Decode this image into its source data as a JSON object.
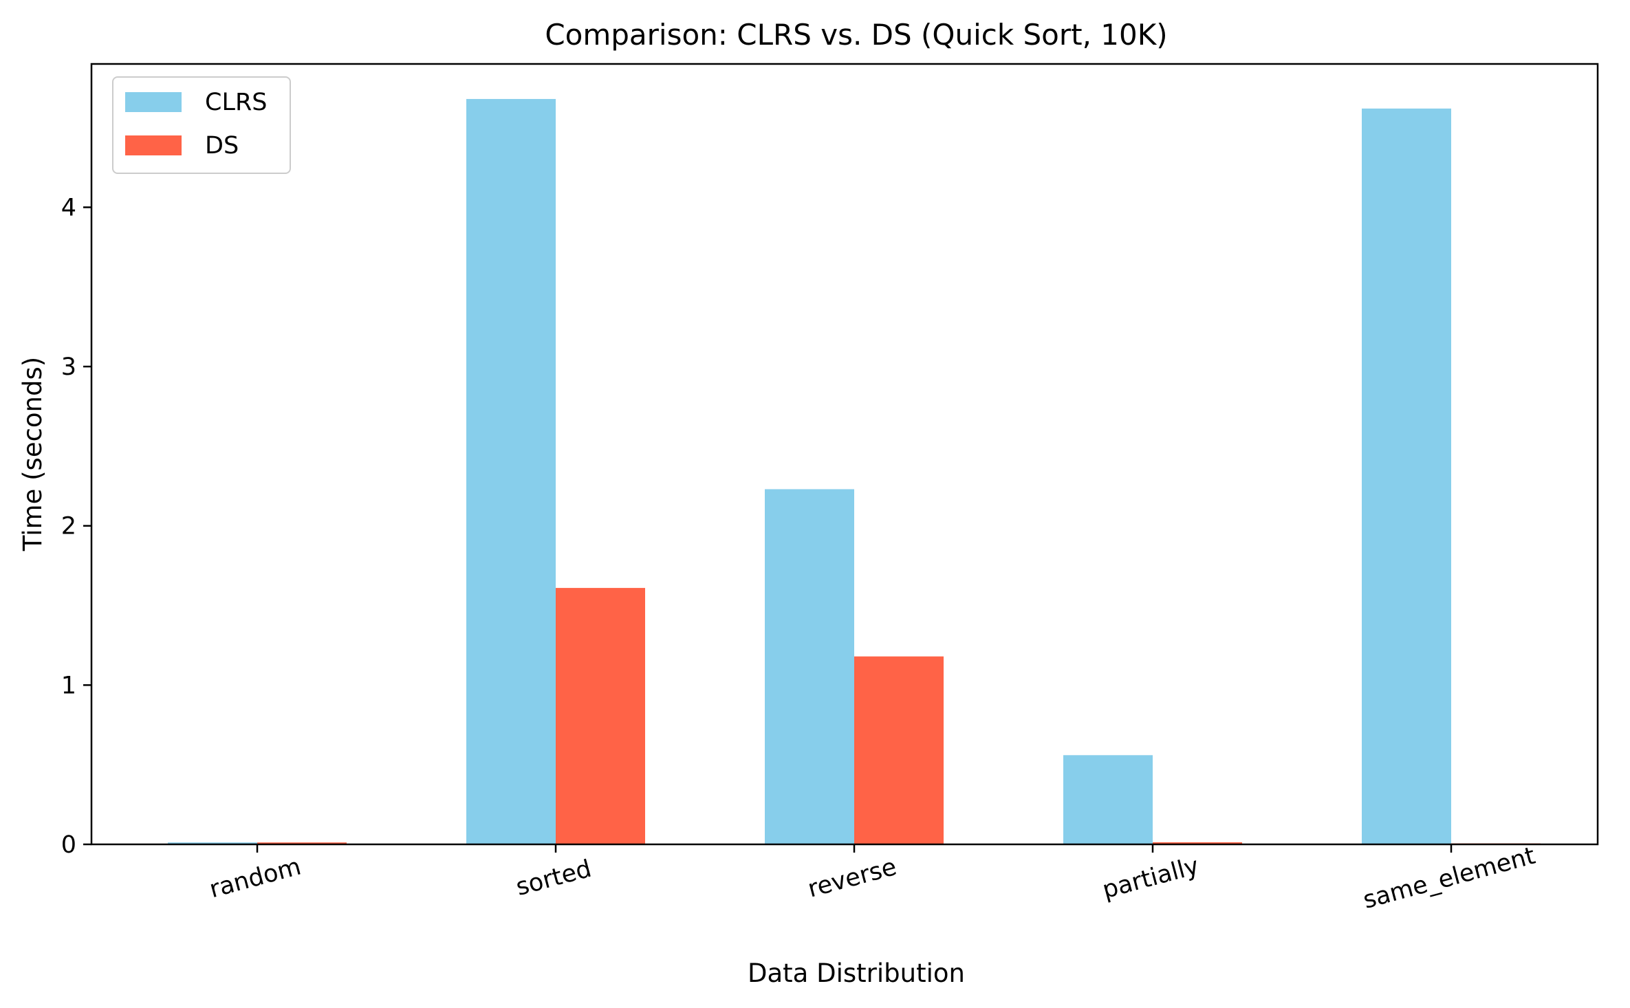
{
  "chart_data": {
    "type": "bar",
    "title": "Comparison: CLRS vs. DS (Quick Sort, 10K)",
    "xlabel": "Data Distribution",
    "ylabel": "Time (seconds)",
    "categories": [
      "random",
      "sorted",
      "reverse",
      "partially",
      "same_element"
    ],
    "series": [
      {
        "name": "CLRS",
        "color": "#87CEEB",
        "values": [
          0.012,
          4.68,
          2.23,
          0.56,
          4.62
        ]
      },
      {
        "name": "DS",
        "color": "#FF6347",
        "values": [
          0.012,
          1.61,
          1.18,
          0.013,
          0.006
        ]
      }
    ],
    "ylim": [
      0,
      4.9
    ],
    "yticks": [
      0,
      1,
      2,
      3,
      4
    ],
    "grid": false,
    "legend_position": "top-left",
    "x_tick_rotation": "rotated"
  }
}
